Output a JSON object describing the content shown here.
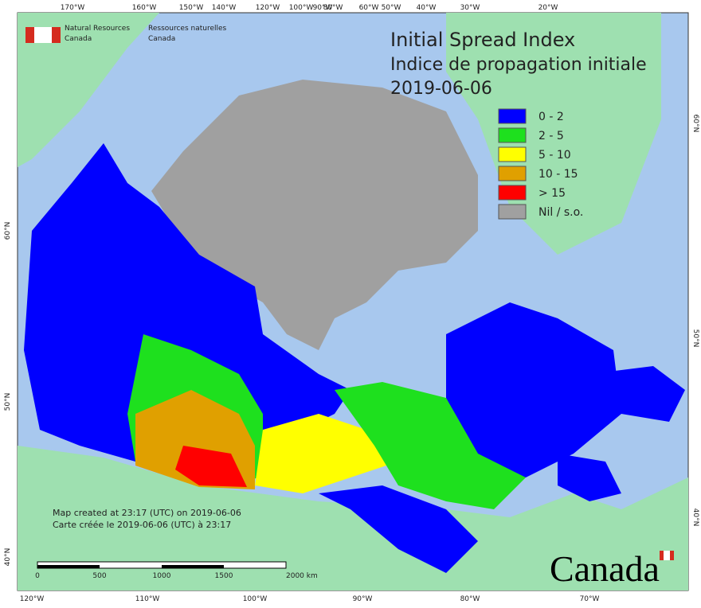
{
  "header": {
    "org_en": [
      "Natural Resources",
      "Canada"
    ],
    "org_fr": [
      "Ressources naturelles",
      "Canada"
    ]
  },
  "title": [
    "Initial Spread Index",
    "Indice de propagation initiale",
    "2019-06-06"
  ],
  "legend": [
    {
      "label": "0 - 2",
      "color": "#0000ff"
    },
    {
      "label": "2 - 5",
      "color": "#1ee01e"
    },
    {
      "label": "5 - 10",
      "color": "#ffff00"
    },
    {
      "label": "10 - 15",
      "color": "#e0a000"
    },
    {
      "label": "> 15",
      "color": "#ff0000"
    },
    {
      "label": "Nil / s.o.",
      "color": "#a0a0a0"
    }
  ],
  "top_labels": [
    "170°W",
    "160°W",
    "150°W",
    "140°W",
    "120°W",
    "100°W",
    "90°W",
    "80°W",
    "60°W",
    "50°W",
    "40°W",
    "30°W",
    "20°W"
  ],
  "bottom_labels": [
    "120°W",
    "110°W",
    "100°W",
    "90°W",
    "80°W",
    "70°W"
  ],
  "left_labels": [
    "60°N",
    "50°N",
    "40°N"
  ],
  "right_labels": [
    "60°N",
    "50°N",
    "40°N"
  ],
  "scale_labels": [
    "0",
    "500",
    "1000",
    "1500",
    "2000 km"
  ],
  "footer": [
    "Map created at 23:17 (UTC) on 2019-06-06",
    "Carte créée le 2019-06-06 (UTC) à 23:17"
  ],
  "wordmark": "Canada"
}
